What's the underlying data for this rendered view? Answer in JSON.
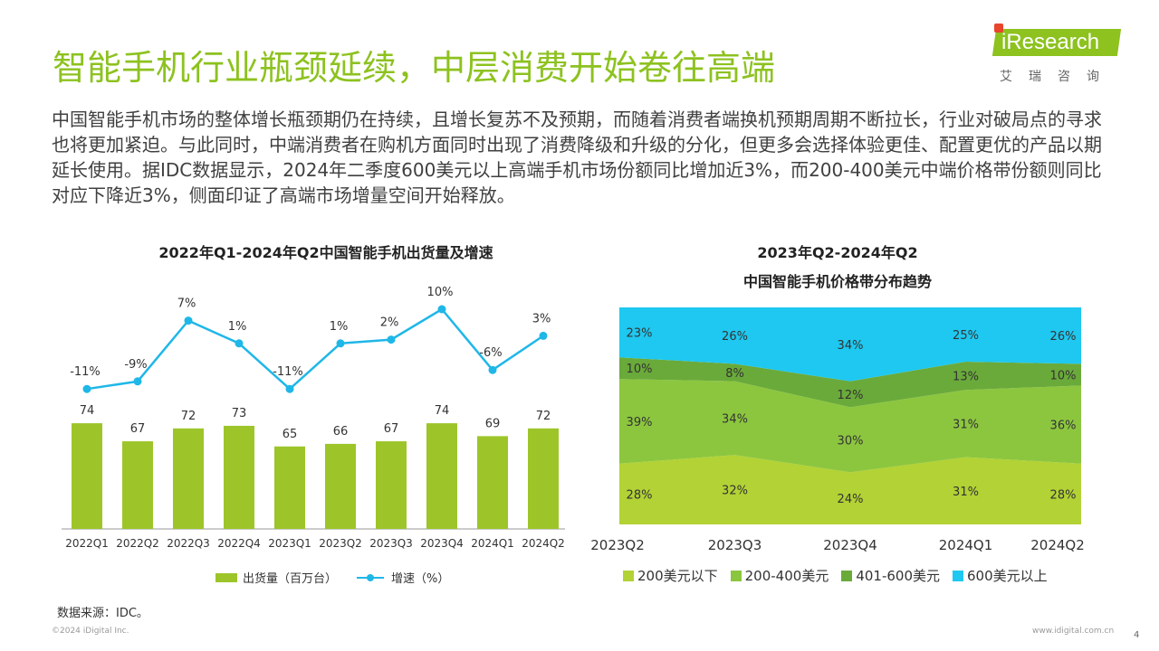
{
  "slide": {
    "title": "智能手机行业瓶颈延续，中层消费开始卷往高端",
    "logo_text": "iResearch",
    "logo_sub": "艾瑞咨询",
    "paragraph": "中国智能手机市场的整体增长瓶颈期仍在持续，且增长复苏不及预期，而随着消费者端换机预期周期不断拉长，行业对破局点的寻求也将更加紧迫。与此同时，中端消费者在购机方面同时出现了消费降级和升级的分化，但更多会选择体验更佳、配置更优的产品以期延长使用。据IDC数据显示，2024年二季度600美元以上高端手机市场份额同比增加近3%，而200-400美元中端价格带份额则同比对应下降近3%，侧面印证了高端市场增量空间开始释放。",
    "source": "数据来源：IDC。",
    "copyright": "©2024 iDigital Inc.",
    "website": "www.idigital.com.cn",
    "page_number": "4",
    "colors": {
      "accent": "#8dc21f",
      "line": "#1fb7e8"
    }
  },
  "chart_data": [
    {
      "type": "bar",
      "title": "2022年Q1-2024年Q2中国智能手机出货量及增速",
      "categories": [
        "2022Q1",
        "2022Q2",
        "2022Q3",
        "2022Q4",
        "2023Q1",
        "2023Q2",
        "2023Q3",
        "2023Q4",
        "2024Q1",
        "2024Q2"
      ],
      "series": [
        {
          "name": "出货量（百万台）",
          "type": "bar",
          "color": "#9dc52a",
          "values": [
            74,
            67,
            72,
            73,
            65,
            66,
            67,
            74,
            69,
            72
          ]
        },
        {
          "name": "增速（%）",
          "type": "line",
          "color": "#1fb7e8",
          "values": [
            -11,
            -9,
            7,
            1,
            -11,
            1,
            2,
            10,
            -6,
            3
          ],
          "labels": [
            "-11%",
            "-9%",
            "7%",
            "1%",
            "-11%",
            "1%",
            "2%",
            "10%",
            "-6%",
            "3%"
          ]
        }
      ],
      "legend": "bottom"
    },
    {
      "type": "area",
      "title": "2023年Q2-2024年Q2",
      "subtitle": "中国智能手机价格带分布趋势",
      "categories": [
        "2023Q2",
        "2023Q3",
        "2023Q4",
        "2024Q1",
        "2024Q2"
      ],
      "stacked": true,
      "ylim": [
        0,
        100
      ],
      "series": [
        {
          "name": "200美元以下",
          "color": "#b2d235",
          "values": [
            28,
            32,
            24,
            31,
            28
          ]
        },
        {
          "name": "200-400美元",
          "color": "#8cc63f",
          "values": [
            39,
            34,
            30,
            31,
            36
          ]
        },
        {
          "name": "401-600美元",
          "color": "#6aaa3a",
          "values": [
            10,
            8,
            12,
            13,
            10
          ]
        },
        {
          "name": "600美元以上",
          "color": "#1ec8f0",
          "values": [
            23,
            26,
            34,
            25,
            26
          ]
        }
      ],
      "legend": "bottom"
    }
  ]
}
